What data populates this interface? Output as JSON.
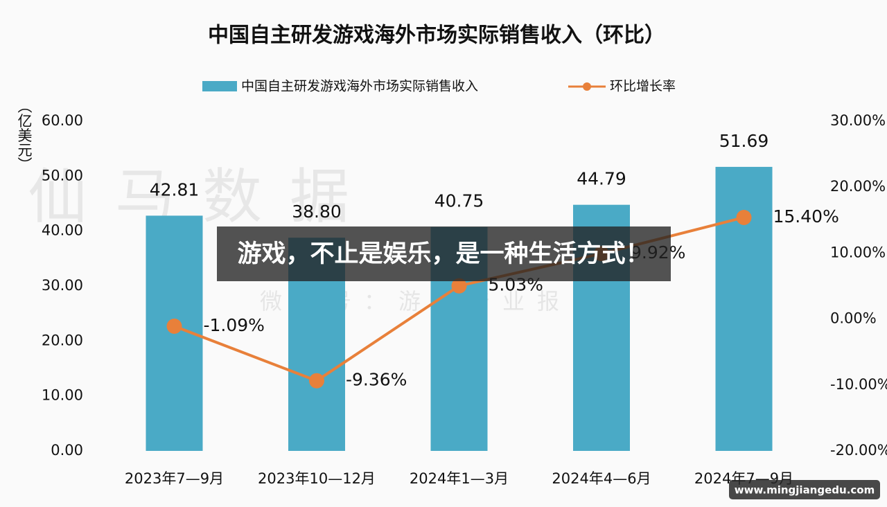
{
  "chart_data": {
    "type": "bar",
    "title": "中国自主研发游戏海外市场实际销售收入（环比）",
    "y_label": "（亿美元）",
    "categories": [
      "2023年7—9月",
      "2023年10—12月",
      "2024年1—3月",
      "2024年4—6月",
      "2024年7—9月"
    ],
    "series": [
      {
        "name": "中国自主研发游戏海外市场实际销售收入",
        "type": "bar",
        "color": "#4aaac6",
        "values": [
          42.81,
          38.8,
          40.75,
          44.79,
          51.69
        ],
        "value_labels": [
          "42.81",
          "38.80",
          "40.75",
          "44.79",
          "51.69"
        ]
      },
      {
        "name": "环比增长率",
        "type": "line",
        "axis": "y2",
        "color": "#e8803a",
        "values": [
          -1.09,
          -9.36,
          5.03,
          9.92,
          15.4
        ],
        "value_labels": [
          "-1.09%",
          "-9.36%",
          "5.03%",
          "9.92%",
          "15.40%"
        ]
      }
    ],
    "ylim": [
      0,
      60
    ],
    "yticks": [
      {
        "value": 0,
        "label": "0.00"
      },
      {
        "value": 10,
        "label": "10.00"
      },
      {
        "value": 20,
        "label": "20.00"
      },
      {
        "value": 30,
        "label": "30.00"
      },
      {
        "value": 40,
        "label": "40.00"
      },
      {
        "value": 50,
        "label": "50.00"
      },
      {
        "value": 60,
        "label": "60.00"
      }
    ],
    "y2lim": [
      -20,
      30
    ],
    "y2ticks": [
      {
        "value": -20,
        "label": "-20.00%"
      },
      {
        "value": -10,
        "label": "-10.00%"
      },
      {
        "value": 0,
        "label": "0.00%"
      },
      {
        "value": 10,
        "label": "10.00%"
      },
      {
        "value": 20,
        "label": "20.00%"
      },
      {
        "value": 30,
        "label": "30.00%"
      }
    ],
    "grid": false
  },
  "overlay": {
    "banner": "游戏，不止是娱乐，是一种生活方式！",
    "site": "www.mingjiangedu.com",
    "watermark": "仙马数据",
    "watermark_sub": "微信号：游戏产业报告"
  }
}
